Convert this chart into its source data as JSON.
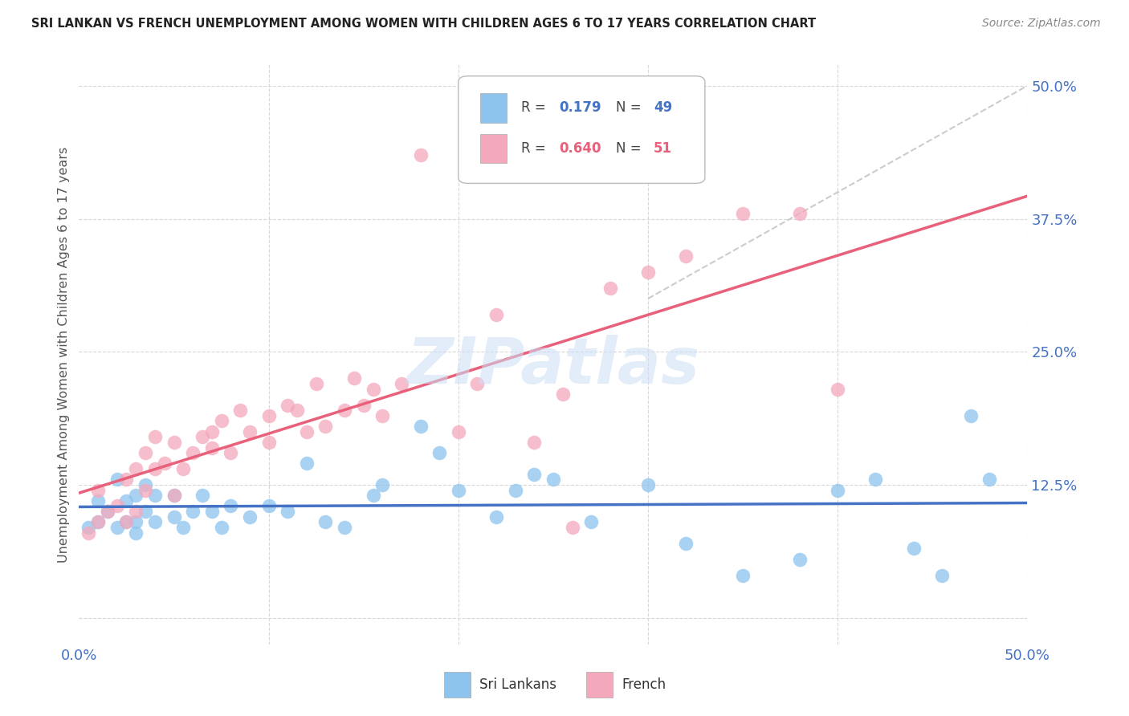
{
  "title": "SRI LANKAN VS FRENCH UNEMPLOYMENT AMONG WOMEN WITH CHILDREN AGES 6 TO 17 YEARS CORRELATION CHART",
  "source": "Source: ZipAtlas.com",
  "ylabel": "Unemployment Among Women with Children Ages 6 to 17 years",
  "xlim": [
    0.0,
    0.5
  ],
  "ylim": [
    -0.025,
    0.52
  ],
  "yticks": [
    0.0,
    0.125,
    0.25,
    0.375,
    0.5
  ],
  "ytick_labels": [
    "",
    "12.5%",
    "25.0%",
    "37.5%",
    "50.0%"
  ],
  "xticks": [
    0.0,
    0.1,
    0.2,
    0.3,
    0.4,
    0.5
  ],
  "xtick_labels": [
    "0.0%",
    "",
    "",
    "",
    "",
    "50.0%"
  ],
  "background_color": "#ffffff",
  "grid_color": "#d8d8d8",
  "watermark": "ZIPatlas",
  "sri_color": "#8DC4EE",
  "french_color": "#F4A8BB",
  "sri_line_color": "#4472C4",
  "french_line_color": "#E8607A",
  "diag_color": "#cccccc",
  "R_sri": 0.179,
  "N_sri": 49,
  "R_french": 0.64,
  "N_french": 51,
  "sri_x": [
    0.005,
    0.01,
    0.01,
    0.015,
    0.02,
    0.02,
    0.025,
    0.025,
    0.03,
    0.03,
    0.03,
    0.035,
    0.035,
    0.04,
    0.04,
    0.05,
    0.05,
    0.055,
    0.06,
    0.065,
    0.07,
    0.075,
    0.08,
    0.09,
    0.1,
    0.11,
    0.12,
    0.13,
    0.14,
    0.155,
    0.16,
    0.18,
    0.19,
    0.2,
    0.22,
    0.23,
    0.24,
    0.25,
    0.27,
    0.3,
    0.32,
    0.35,
    0.38,
    0.4,
    0.42,
    0.44,
    0.455,
    0.47,
    0.48
  ],
  "sri_y": [
    0.085,
    0.09,
    0.11,
    0.1,
    0.085,
    0.13,
    0.09,
    0.11,
    0.08,
    0.09,
    0.115,
    0.1,
    0.125,
    0.09,
    0.115,
    0.095,
    0.115,
    0.085,
    0.1,
    0.115,
    0.1,
    0.085,
    0.105,
    0.095,
    0.105,
    0.1,
    0.145,
    0.09,
    0.085,
    0.115,
    0.125,
    0.18,
    0.155,
    0.12,
    0.095,
    0.12,
    0.135,
    0.13,
    0.09,
    0.125,
    0.07,
    0.04,
    0.055,
    0.12,
    0.13,
    0.065,
    0.04,
    0.19,
    0.13
  ],
  "french_x": [
    0.005,
    0.01,
    0.01,
    0.015,
    0.02,
    0.025,
    0.025,
    0.03,
    0.03,
    0.035,
    0.035,
    0.04,
    0.04,
    0.045,
    0.05,
    0.05,
    0.055,
    0.06,
    0.065,
    0.07,
    0.07,
    0.075,
    0.08,
    0.085,
    0.09,
    0.1,
    0.1,
    0.11,
    0.115,
    0.12,
    0.125,
    0.13,
    0.14,
    0.145,
    0.15,
    0.155,
    0.16,
    0.17,
    0.18,
    0.2,
    0.21,
    0.22,
    0.24,
    0.255,
    0.26,
    0.28,
    0.3,
    0.32,
    0.35,
    0.38,
    0.4
  ],
  "french_y": [
    0.08,
    0.09,
    0.12,
    0.1,
    0.105,
    0.09,
    0.13,
    0.1,
    0.14,
    0.12,
    0.155,
    0.14,
    0.17,
    0.145,
    0.115,
    0.165,
    0.14,
    0.155,
    0.17,
    0.16,
    0.175,
    0.185,
    0.155,
    0.195,
    0.175,
    0.165,
    0.19,
    0.2,
    0.195,
    0.175,
    0.22,
    0.18,
    0.195,
    0.225,
    0.2,
    0.215,
    0.19,
    0.22,
    0.435,
    0.175,
    0.22,
    0.285,
    0.165,
    0.21,
    0.085,
    0.31,
    0.325,
    0.34,
    0.38,
    0.38,
    0.215
  ]
}
